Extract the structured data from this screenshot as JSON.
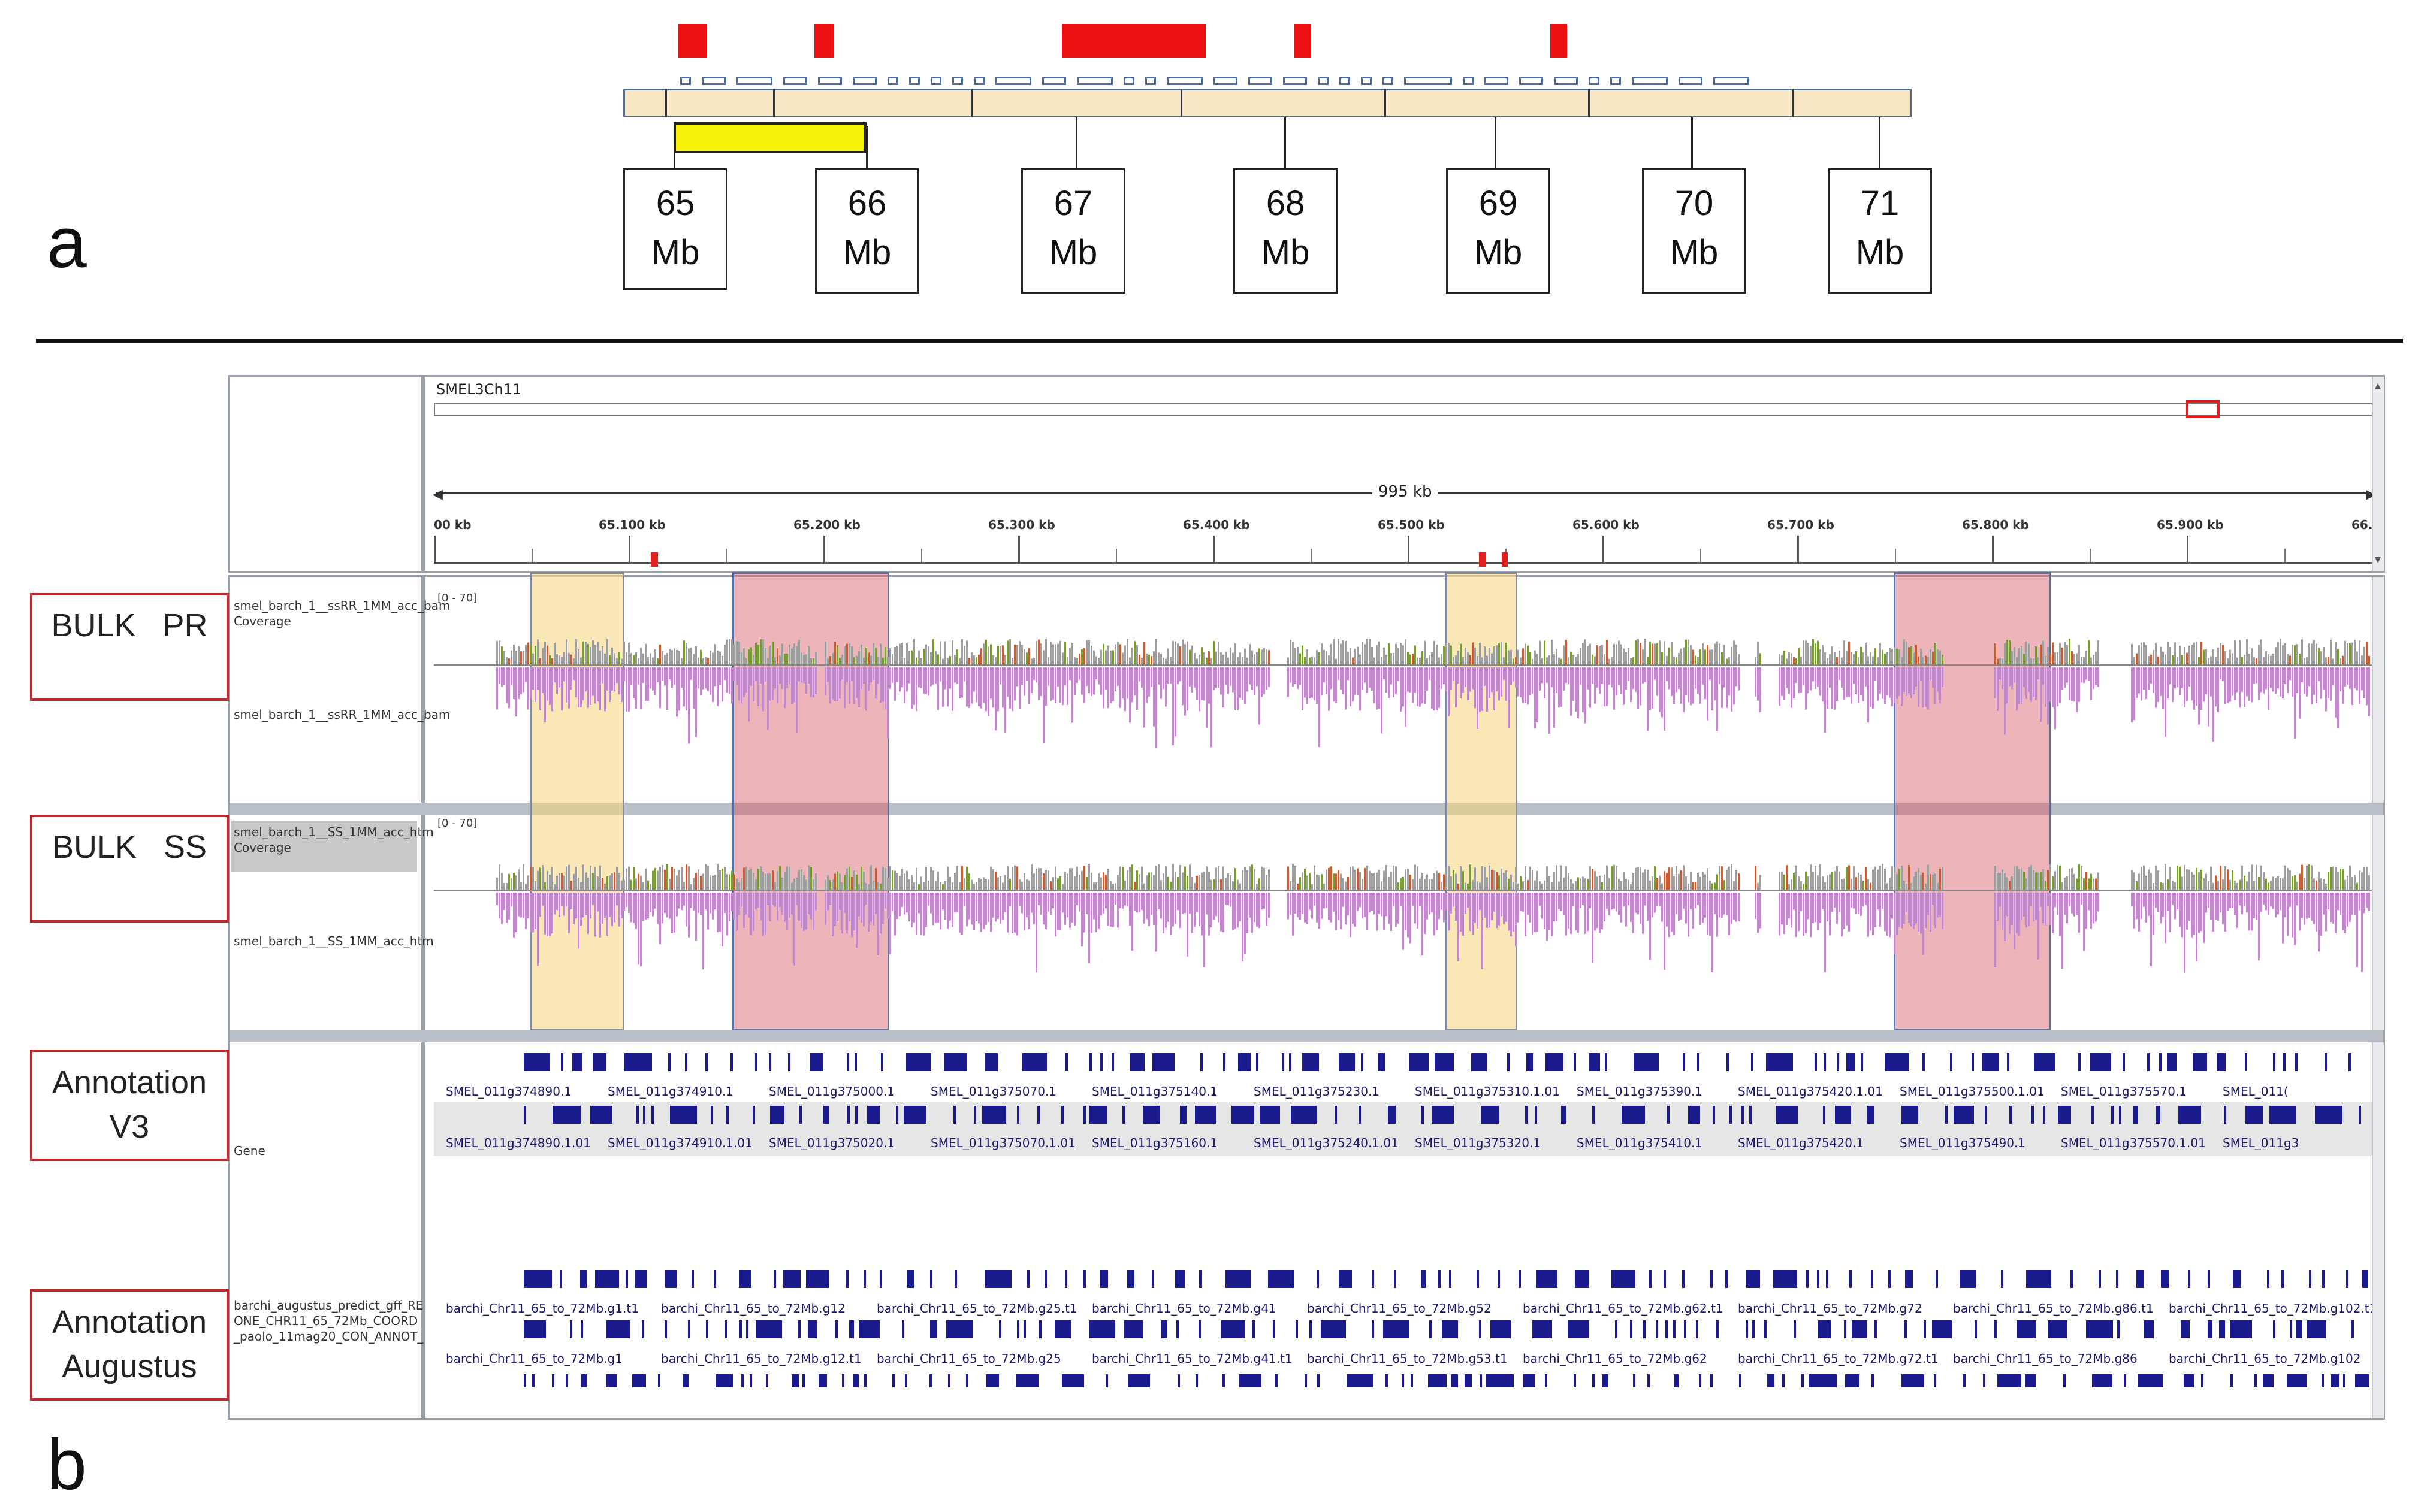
{
  "panel_a": {
    "letter": "a",
    "markers": [
      {
        "label": "65",
        "unit": "Mb"
      },
      {
        "label": "66",
        "unit": "Mb"
      },
      {
        "label": "67",
        "unit": "Mb"
      },
      {
        "label": "68",
        "unit": "Mb"
      },
      {
        "label": "69",
        "unit": "Mb"
      },
      {
        "label": "70",
        "unit": "Mb"
      },
      {
        "label": "71",
        "unit": "Mb"
      }
    ]
  },
  "panel_b": {
    "letter": "b",
    "chromosome": "SMEL3Ch11",
    "span_label": "995 kb",
    "ruler_ticks": [
      "00 kb",
      "65.100 kb",
      "65.200 kb",
      "65.300 kb",
      "65.400 kb",
      "65.500 kb",
      "65.600 kb",
      "65.700 kb",
      "65.800 kb",
      "65.900 kb",
      "66."
    ],
    "data_range": "[0 - 70]",
    "sections": {
      "bulk_pr": {
        "label": "BULK   PR",
        "coverage_track": "smel_barch_1__ssRR_1MM_acc_bam Coverage",
        "alignment_track": "smel_barch_1__ssRR_1MM_acc_bam"
      },
      "bulk_ss": {
        "label": "BULK   SS",
        "coverage_track": "smel_barch_1__SS_1MM_acc_htm Coverage",
        "alignment_track": "smel_barch_1__SS_1MM_acc_htm"
      },
      "annotation_v3": {
        "label_line1": "Annotation",
        "label_line2": "V3",
        "track": "Gene",
        "genes_row1": [
          "SMEL_011g374890.1",
          "SMEL_011g374910.1",
          "SMEL_011g375000.1",
          "SMEL_011g375070.1",
          "SMEL_011g375140.1",
          "SMEL_011g375230.1",
          "SMEL_011g375310.1.01",
          "SMEL_011g375390.1",
          "SMEL_011g375420.1.01",
          "SMEL_011g375500.1.01",
          "SMEL_011g375570.1",
          "SMEL_011("
        ],
        "genes_row2": [
          "SMEL_011g374890.1.01",
          "SMEL_011g374910.1.01",
          "SMEL_011g375020.1",
          "SMEL_011g375070.1.01",
          "SMEL_011g375160.1",
          "SMEL_011g375240.1.01",
          "SMEL_011g375320.1",
          "SMEL_011g375410.1",
          "SMEL_011g375420.1",
          "SMEL_011g375490.1",
          "SMEL_011g375570.1.01",
          "SMEL_011g3"
        ]
      },
      "annotation_augustus": {
        "label_line1": "Annotation",
        "label_line2": "Augustus",
        "track_line1": "barchi_augustus_predict_gff_RE",
        "track_line2": "ONE_CHR11_65_72Mb_COORD",
        "track_line3": "_paolo_11mag20_CON_ANNOT_",
        "genes_row1": [
          "barchi_Chr11_65_to_72Mb.g1.t1",
          "barchi_Chr11_65_to_72Mb.g12",
          "barchi_Chr11_65_to_72Mb.g25.t1",
          "barchi_Chr11_65_to_72Mb.g41",
          "barchi_Chr11_65_to_72Mb.g52",
          "barchi_Chr11_65_to_72Mb.g62.t1",
          "barchi_Chr11_65_to_72Mb.g72",
          "barchi_Chr11_65_to_72Mb.g86.t1",
          "barchi_Chr11_65_to_72Mb.g102.t1"
        ],
        "genes_row2": [
          "barchi_Chr11_65_to_72Mb.g1",
          "barchi_Chr11_65_to_72Mb.g12.t1",
          "barchi_Chr11_65_to_72Mb.g25",
          "barchi_Chr11_65_to_72Mb.g41.t1",
          "barchi_Chr11_65_to_72Mb.g53.t1",
          "barchi_Chr11_65_to_72Mb.g62",
          "barchi_Chr11_65_to_72Mb.g72.t1",
          "barchi_Chr11_65_to_72Mb.g86",
          "barchi_Chr11_65_to_72Mb.g102"
        ]
      }
    },
    "colors": {
      "highlight_yellow": "#f4d67a",
      "highlight_red": "#d65c66",
      "gene_blue": "#1a1a8c",
      "coverage_grey": "#9e9e9e",
      "alignment_purple": "#c08ac8",
      "label_border_red": "#c0272d"
    },
    "icons": [
      "scroll-up-icon",
      "scroll-down-icon"
    ]
  }
}
